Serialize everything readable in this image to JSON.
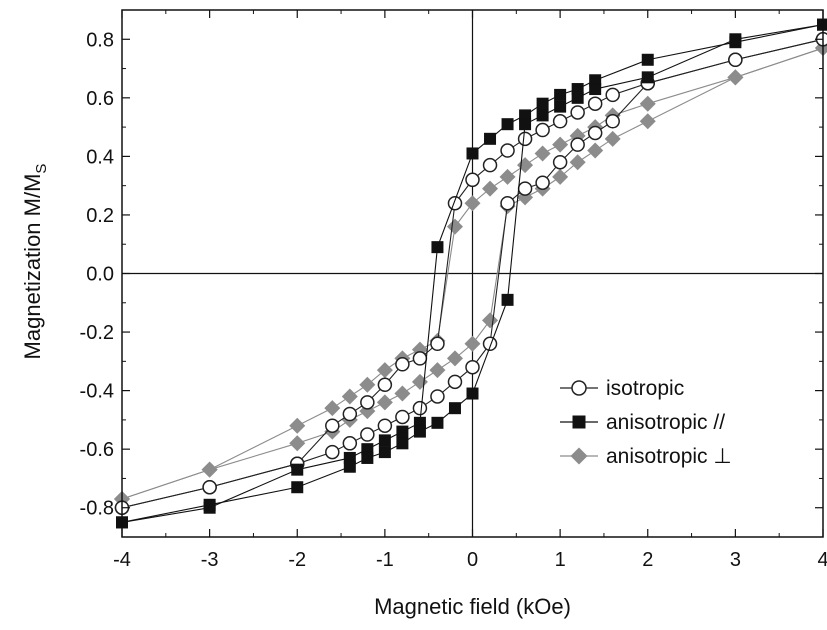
{
  "chart_data": {
    "type": "line",
    "xlabel": "Magnetic field (kOe)",
    "ylabel_main": "Magnetization M/M",
    "ylabel_sub": "S",
    "xlim": [
      -4,
      4
    ],
    "ylim": [
      -0.9,
      0.9
    ],
    "xticks": [
      "-4",
      "-3",
      "-2",
      "-1",
      "0",
      "1",
      "2",
      "3",
      "4"
    ],
    "yticks": [
      "-0.8",
      "-0.6",
      "-0.4",
      "-0.2",
      "0.0",
      "0.2",
      "0.4",
      "0.6",
      "0.8"
    ],
    "zero_lines": true,
    "legend_position": "lower-right",
    "series": [
      {
        "name": "isotropic",
        "color": "#222222",
        "marker": "circle-open",
        "branches": [
          {
            "x": [
              4,
              3,
              2,
              1.6,
              1.4,
              1.2,
              1.0,
              0.8,
              0.6,
              0.4,
              0.2,
              0,
              -0.2,
              -0.4,
              -0.6,
              -0.8,
              -1.0,
              -1.2,
              -1.4,
              -1.6,
              -2,
              -3,
              -4
            ],
            "y": [
              0.8,
              0.73,
              0.65,
              0.61,
              0.58,
              0.55,
              0.52,
              0.49,
              0.46,
              0.42,
              0.37,
              0.32,
              0.24,
              -0.24,
              -0.29,
              -0.31,
              -0.38,
              -0.44,
              -0.48,
              -0.52,
              -0.65,
              -0.73,
              -0.8
            ]
          },
          {
            "x": [
              -4,
              -3,
              -2,
              -1.6,
              -1.4,
              -1.2,
              -1.0,
              -0.8,
              -0.6,
              -0.4,
              -0.2,
              0,
              0.2,
              0.4,
              0.6,
              0.8,
              1.0,
              1.2,
              1.4,
              1.6,
              2,
              3,
              4
            ],
            "y": [
              -0.8,
              -0.73,
              -0.65,
              -0.61,
              -0.58,
              -0.55,
              -0.52,
              -0.49,
              -0.46,
              -0.42,
              -0.37,
              -0.32,
              -0.24,
              0.24,
              0.29,
              0.31,
              0.38,
              0.44,
              0.48,
              0.52,
              0.65,
              0.73,
              0.8
            ]
          }
        ]
      },
      {
        "name": "anisotropic //",
        "color": "#111111",
        "marker": "square-filled",
        "branches": [
          {
            "x": [
              4,
              3,
              2,
              1.4,
              1.2,
              1.0,
              0.8,
              0.6,
              0.4,
              0.2,
              0,
              -0.4,
              -0.6,
              -0.8,
              -1.0,
              -1.2,
              -1.4,
              -2,
              -3,
              -4
            ],
            "y": [
              0.85,
              0.79,
              0.73,
              0.66,
              0.63,
              0.61,
              0.58,
              0.54,
              0.51,
              0.46,
              0.41,
              0.09,
              -0.51,
              -0.54,
              -0.57,
              -0.6,
              -0.63,
              -0.67,
              -0.8,
              -0.85
            ]
          },
          {
            "x": [
              -4,
              -3,
              -2,
              -1.4,
              -1.2,
              -1.0,
              -0.8,
              -0.6,
              -0.4,
              -0.2,
              0,
              0.4,
              0.6,
              0.8,
              1.0,
              1.2,
              1.4,
              2,
              3,
              4
            ],
            "y": [
              -0.85,
              -0.79,
              -0.73,
              -0.66,
              -0.63,
              -0.61,
              -0.58,
              -0.54,
              -0.51,
              -0.46,
              -0.41,
              -0.09,
              0.51,
              0.54,
              0.57,
              0.6,
              0.63,
              0.67,
              0.8,
              0.85
            ]
          }
        ]
      },
      {
        "name": "anisotropic ⊥",
        "color": "#8c8c8c",
        "marker": "diamond-filled",
        "branches": [
          {
            "x": [
              4,
              3,
              2,
              1.6,
              1.4,
              1.2,
              1.0,
              0.8,
              0.6,
              0.4,
              0.2,
              0,
              -0.2,
              -0.4,
              -0.6,
              -0.8,
              -1.0,
              -1.2,
              -1.4,
              -1.6,
              -2,
              -3,
              -4
            ],
            "y": [
              0.77,
              0.67,
              0.58,
              0.54,
              0.5,
              0.47,
              0.44,
              0.41,
              0.37,
              0.33,
              0.29,
              0.24,
              0.16,
              -0.23,
              -0.26,
              -0.29,
              -0.33,
              -0.38,
              -0.42,
              -0.46,
              -0.52,
              -0.67,
              -0.77
            ]
          },
          {
            "x": [
              -4,
              -3,
              -2,
              -1.6,
              -1.4,
              -1.2,
              -1.0,
              -0.8,
              -0.6,
              -0.4,
              -0.2,
              0,
              0.2,
              0.4,
              0.6,
              0.8,
              1.0,
              1.2,
              1.4,
              1.6,
              2,
              3,
              4
            ],
            "y": [
              -0.77,
              -0.67,
              -0.58,
              -0.54,
              -0.5,
              -0.47,
              -0.44,
              -0.41,
              -0.37,
              -0.33,
              -0.29,
              -0.24,
              -0.16,
              0.23,
              0.26,
              0.29,
              0.33,
              0.38,
              0.42,
              0.46,
              0.52,
              0.67,
              0.77
            ]
          }
        ]
      }
    ]
  }
}
